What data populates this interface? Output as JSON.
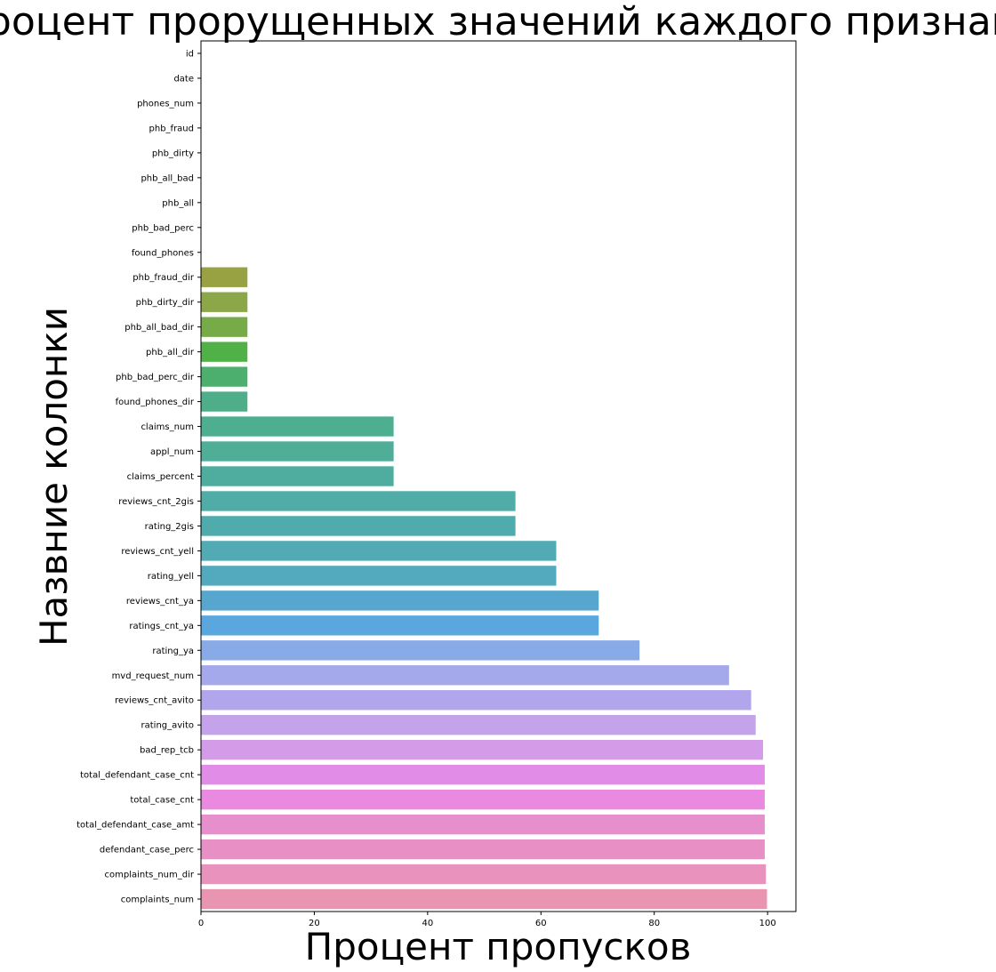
{
  "chart_data": {
    "type": "bar",
    "orientation": "horizontal",
    "title": "Процент прорущенных значений каждого признака",
    "xlabel": "Процент пропусков",
    "ylabel": "Назвние колонки",
    "xlim": [
      0,
      105
    ],
    "xticks": [
      0,
      20,
      40,
      60,
      80,
      100
    ],
    "grid": false,
    "categories": [
      "id",
      "date",
      "phones_num",
      "phb_fraud",
      "phb_dirty",
      "phb_all_bad",
      "phb_all",
      "phb_bad_perc",
      "found_phones",
      "phb_fraud_dir",
      "phb_dirty_dir",
      "phb_all_bad_dir",
      "phb_all_dir",
      "phb_bad_perc_dir",
      "found_phones_dir",
      "claims_num",
      "appl_num",
      "claims_percent",
      "reviews_cnt_2gis",
      "rating_2gis",
      "reviews_cnt_yell",
      "rating_yell",
      "reviews_cnt_ya",
      "ratings_cnt_ya",
      "rating_ya",
      "mvd_request_num",
      "reviews_cnt_avito",
      "rating_avito",
      "bad_rep_tcb",
      "total_defendant_case_cnt",
      "total_case_cnt",
      "total_defendant_case_amt",
      "defendant_case_perc",
      "complaints_num_dir",
      "complaints_num"
    ],
    "values": [
      0,
      0,
      0,
      0,
      0,
      0,
      0,
      0,
      0,
      8.2,
      8.2,
      8.2,
      8.2,
      8.2,
      8.2,
      34.0,
      34.0,
      34.0,
      55.5,
      55.5,
      62.7,
      62.7,
      70.2,
      70.2,
      77.4,
      93.2,
      97.1,
      97.9,
      99.2,
      99.5,
      99.5,
      99.5,
      99.5,
      99.7,
      99.9
    ],
    "colors": [
      "#f77189",
      "#f37932",
      "#cb8f32",
      "#b49a31",
      "#a1a231",
      "#8ba830",
      "#5fb031",
      "#32b166",
      "#34ae8d",
      "#98a242",
      "#8ca748",
      "#77ab48",
      "#50b146",
      "#4caf6e",
      "#4eae8a",
      "#4daf90",
      "#4eae98",
      "#4fad9f",
      "#4faca6",
      "#50abac",
      "#51aab4",
      "#53a9bd",
      "#56a6cd",
      "#5aa7e0",
      "#88aae7",
      "#a3a9eb",
      "#b1a6ec",
      "#c4a3ea",
      "#d49be9",
      "#e18de8",
      "#e98ae0",
      "#e68fcc",
      "#e890c6",
      "#e992bd",
      "#e995b1"
    ]
  }
}
